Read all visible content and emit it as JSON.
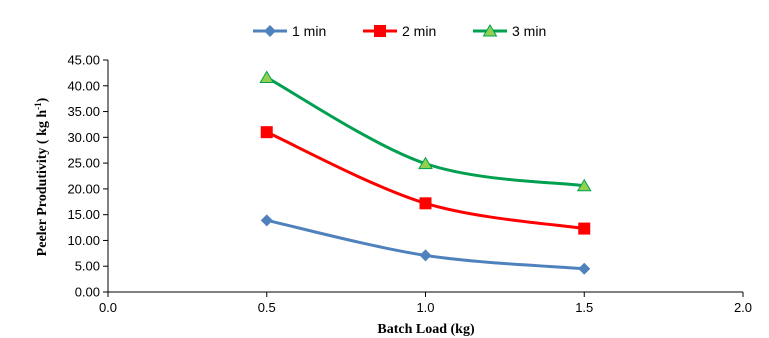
{
  "chart_data": {
    "type": "line",
    "title": "",
    "xlabel": "Batch Load (kg)",
    "ylabel": "Peeler Produtivity  ( kg h-1)",
    "ylabel_main": "Peeler Produtivity  ( kg h",
    "ylabel_sup": "-1",
    "ylabel_end": ")",
    "xlim": [
      0.0,
      2.0
    ],
    "ylim": [
      0.0,
      45.0
    ],
    "x_ticks": [
      "0.0",
      "0.5",
      "1.0",
      "1.5",
      "2.0"
    ],
    "y_ticks": [
      "0.00",
      "5.00",
      "10.00",
      "15.00",
      "20.00",
      "25.00",
      "30.00",
      "35.00",
      "40.00",
      "45.00"
    ],
    "grid": false,
    "legend_position": "top",
    "x": [
      0.5,
      1.0,
      1.5
    ],
    "series": [
      {
        "name": "1 min",
        "values": [
          13.9,
          7.1,
          4.5
        ],
        "color": "#4f81bd",
        "marker": "diamond"
      },
      {
        "name": "2 min",
        "values": [
          31.0,
          17.2,
          12.3
        ],
        "color": "#ff0000",
        "marker": "square"
      },
      {
        "name": "3 min",
        "values": [
          41.6,
          24.9,
          20.6
        ],
        "color": "#00a050",
        "marker": "triangle",
        "marker_fill": "#92d050"
      }
    ]
  }
}
